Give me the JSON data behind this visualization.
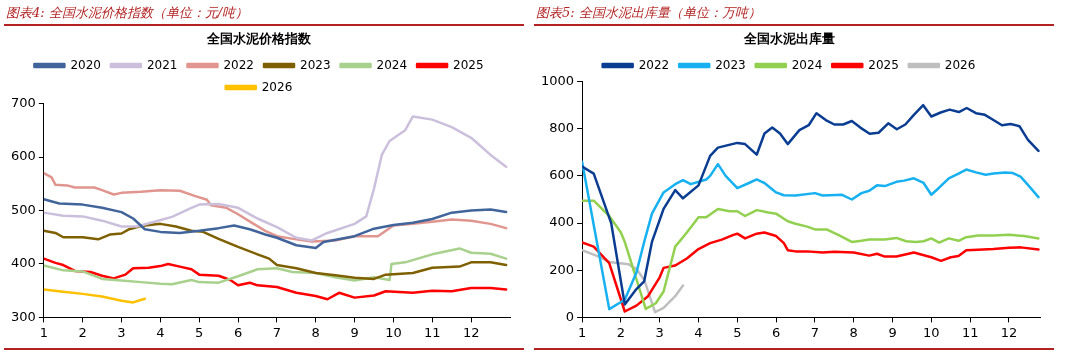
{
  "chart_data": [
    {
      "type": "line",
      "title": "图表4:  全国水泥价格指数（单位：元/吨）",
      "subtitle": "全国水泥价格指数",
      "xlim": [
        1,
        13
      ],
      "xticks": [
        1,
        2,
        3,
        4,
        5,
        6,
        7,
        8,
        9,
        10,
        11,
        12
      ],
      "ylim": [
        300,
        700
      ],
      "yticks": [
        300,
        400,
        500,
        600,
        700
      ],
      "grid": false,
      "legend": "top",
      "marker": "none",
      "line_style": "solid",
      "series": [
        {
          "name": "2020",
          "color": "#41659a",
          "x": [
            1,
            1.4,
            2,
            2.5,
            3,
            3.3,
            3.6,
            4,
            4.5,
            5,
            5.5,
            5.9,
            6.3,
            6.7,
            7,
            7.5,
            8,
            8.2,
            9,
            9.5,
            10,
            10.5,
            11,
            11.5,
            12,
            12.5,
            12.9
          ],
          "values": [
            521,
            513,
            511,
            505,
            497,
            485,
            465,
            460,
            458,
            462,
            467,
            472,
            465,
            455,
            449,
            435,
            430,
            441,
            452,
            466,
            473,
            477,
            484,
            496,
            500,
            502,
            497
          ]
        },
        {
          "name": "2021",
          "color": "#cbbfdc",
          "x": [
            1,
            1.5,
            2,
            2.5,
            3,
            3.4,
            3.8,
            4.3,
            4.8,
            5,
            5.5,
            6,
            6.5,
            7,
            7.5,
            7.9,
            8.3,
            9,
            9.3,
            9.5,
            9.7,
            9.9,
            10.3,
            10.5,
            11,
            11.5,
            12,
            12.5,
            12.9
          ],
          "values": [
            496,
            490,
            489,
            481,
            470,
            470,
            478,
            488,
            505,
            511,
            512,
            505,
            485,
            469,
            449,
            444,
            458,
            475,
            489,
            541,
            604,
            630,
            650,
            676,
            670,
            656,
            636,
            604,
            582
          ]
        },
        {
          "name": "2022",
          "color": "#e0958f",
          "x": [
            1,
            1.2,
            1.3,
            1.6,
            1.8,
            2.3,
            2.5,
            2.8,
            3,
            3.5,
            4,
            4.5,
            4.9,
            5.2,
            5.3,
            5.7,
            6,
            6.4,
            6.7,
            7,
            7.5,
            7.9,
            8.5,
            9,
            9.6,
            10,
            10.5,
            11,
            11.5,
            12,
            12.5,
            12.9
          ],
          "values": [
            570,
            562,
            548,
            547,
            543,
            543,
            538,
            530,
            533,
            535,
            538,
            537,
            527,
            520,
            510,
            505,
            493,
            475,
            462,
            452,
            446,
            442,
            444,
            452,
            452,
            472,
            475,
            479,
            483,
            481,
            475,
            467
          ]
        },
        {
          "name": "2023",
          "color": "#7f6000",
          "x": [
            1,
            1.3,
            1.5,
            2,
            2.4,
            2.7,
            3,
            3.2,
            3.5,
            4,
            4.4,
            4.8,
            5.1,
            5.5,
            6,
            6.5,
            6.8,
            7,
            7.5,
            8,
            8.5,
            9,
            9.5,
            9.8,
            10.5,
            11,
            11.7,
            12,
            12.5,
            12.9
          ],
          "values": [
            462,
            458,
            450,
            450,
            446,
            455,
            457,
            465,
            471,
            475,
            470,
            462,
            460,
            447,
            432,
            418,
            410,
            398,
            392,
            383,
            379,
            374,
            372,
            380,
            383,
            393,
            395,
            403,
            403,
            398
          ]
        },
        {
          "name": "2024",
          "color": "#a9d18e",
          "x": [
            1,
            1.5,
            2,
            2.5,
            3,
            3.5,
            4,
            4.3,
            4.8,
            5,
            5.5,
            6,
            6.5,
            7,
            7.4,
            8,
            8.5,
            9,
            9.5,
            9.9,
            9.95,
            10.3,
            11,
            11.7,
            12,
            12.5,
            12.9
          ],
          "values": [
            397,
            388,
            386,
            372,
            369,
            366,
            363,
            362,
            370,
            366,
            365,
            377,
            390,
            392,
            385,
            383,
            375,
            369,
            375,
            370,
            400,
            403,
            418,
            429,
            421,
            419,
            410
          ]
        },
        {
          "name": "2025",
          "color": "#ff0000",
          "x": [
            1,
            1.3,
            1.5,
            1.8,
            2.2,
            2.5,
            2.8,
            3.1,
            3.3,
            3.7,
            4,
            4.2,
            4.5,
            4.8,
            5,
            5.5,
            5.8,
            6,
            6.3,
            6.5,
            7,
            7.5,
            8,
            8.3,
            8.6,
            9,
            9.5,
            9.8,
            10.5,
            11,
            11.5,
            12,
            12.5,
            12.9
          ],
          "values": [
            410,
            402,
            398,
            387,
            385,
            378,
            373,
            380,
            392,
            393,
            396,
            400,
            395,
            390,
            380,
            378,
            370,
            360,
            365,
            360,
            357,
            346,
            340,
            334,
            346,
            337,
            341,
            349,
            346,
            350,
            349,
            355,
            355,
            352
          ]
        },
        {
          "name": "2026",
          "color": "#ffc000",
          "x": [
            1,
            1.5,
            2,
            2.5,
            3,
            3.3,
            3.6
          ],
          "values": [
            352,
            348,
            344,
            339,
            331,
            328,
            335
          ]
        }
      ]
    },
    {
      "type": "line",
      "title": "图表5:  全国水泥出库量（单位：万吨）",
      "subtitle": "全国水泥出库量",
      "xlim": [
        1,
        12.8
      ],
      "xticks": [
        1,
        2,
        3,
        4,
        5,
        6,
        7,
        8,
        9,
        10,
        11,
        12
      ],
      "ylim": [
        0,
        1000
      ],
      "yticks": [
        0,
        200,
        400,
        600,
        800,
        1000
      ],
      "grid": false,
      "legend": "top",
      "marker": "none",
      "line_style": "solid",
      "series": [
        {
          "name": "2022",
          "color": "#0a3d91",
          "x": [
            1,
            1.3,
            1.75,
            2.1,
            2.4,
            2.6,
            2.8,
            3.1,
            3.4,
            3.6,
            4,
            4.3,
            4.5,
            5,
            5.2,
            5.5,
            5.7,
            5.9,
            6.1,
            6.3,
            6.6,
            6.84,
            7.04,
            7.28,
            7.5,
            7.73,
            7.95,
            8.17,
            8.41,
            8.64,
            8.89,
            9.11,
            9.33,
            9.55,
            9.79,
            10,
            10.24,
            10.47,
            10.71,
            10.91,
            11.15,
            11.38,
            11.6,
            11.82,
            12.04,
            12.27,
            12.49,
            12.76
          ],
          "values": [
            640,
            610,
            400,
            55,
            120,
            153,
            320,
            460,
            540,
            505,
            560,
            685,
            720,
            740,
            735,
            690,
            780,
            805,
            780,
            735,
            794,
            815,
            866,
            837,
            818,
            818,
            833,
            805,
            779,
            783,
            823,
            798,
            818,
            859,
            900,
            852,
            869,
            881,
            871,
            888,
            866,
            859,
            837,
            815,
            820,
            811,
            753,
            706
          ]
        },
        {
          "name": "2023",
          "color": "#17b0f0",
          "x": [
            1,
            1.7,
            2.1,
            2.4,
            2.6,
            2.8,
            3.1,
            3.4,
            3.6,
            3.8,
            4.2,
            4.3,
            4.5,
            4.7,
            5,
            5.3,
            5.5,
            5.7,
            6,
            6.2,
            6.5,
            7,
            7.2,
            7.7,
            7.95,
            8.2,
            8.4,
            8.6,
            8.8,
            9.1,
            9.3,
            9.55,
            9.8,
            10,
            10.2,
            10.45,
            10.7,
            10.9,
            11.15,
            11.4,
            11.6,
            11.9,
            12.1,
            12.3,
            12.5,
            12.76
          ],
          "values": [
            660,
            35,
            75,
            190,
            320,
            440,
            530,
            565,
            582,
            565,
            585,
            600,
            650,
            600,
            548,
            570,
            585,
            570,
            530,
            518,
            517,
            527,
            517,
            520,
            500,
            527,
            537,
            560,
            557,
            575,
            580,
            590,
            570,
            520,
            550,
            590,
            610,
            627,
            615,
            605,
            610,
            615,
            612,
            597,
            560,
            510
          ]
        },
        {
          "name": "2024",
          "color": "#92d050",
          "x": [
            1,
            1.3,
            1.7,
            2,
            2.1,
            2.64,
            2.9,
            3.1,
            3.4,
            3.7,
            4,
            4.2,
            4.5,
            4.8,
            5,
            5.2,
            5.5,
            5.8,
            6,
            6.3,
            6.5,
            6.8,
            7,
            7.3,
            7.6,
            7.95,
            8.2,
            8.4,
            8.8,
            9.1,
            9.35,
            9.6,
            9.8,
            10,
            10.2,
            10.45,
            10.7,
            10.9,
            11.2,
            11.6,
            12,
            12.4,
            12.76
          ],
          "values": [
            495,
            495,
            430,
            360,
            320,
            36,
            60,
            110,
            300,
            360,
            425,
            425,
            460,
            450,
            450,
            430,
            455,
            445,
            440,
            408,
            397,
            385,
            373,
            373,
            350,
            320,
            325,
            330,
            330,
            337,
            323,
            320,
            323,
            335,
            317,
            335,
            325,
            340,
            347,
            347,
            350,
            345,
            335
          ]
        },
        {
          "name": "2025",
          "color": "#ff0000",
          "x": [
            1,
            1.3,
            1.7,
            2.1,
            2.4,
            2.7,
            3,
            3.1,
            3.4,
            3.7,
            4,
            4.3,
            4.6,
            4.9,
            5,
            5.2,
            5.5,
            5.7,
            6,
            6.2,
            6.3,
            6.5,
            6.8,
            7.2,
            7.5,
            8,
            8.4,
            8.6,
            8.8,
            9.1,
            9.55,
            10,
            10.25,
            10.5,
            10.7,
            10.9,
            11.2,
            11.6,
            12,
            12.3,
            12.76
          ],
          "values": [
            318,
            300,
            230,
            25,
            50,
            90,
            170,
            210,
            220,
            250,
            290,
            315,
            330,
            350,
            355,
            335,
            355,
            360,
            345,
            315,
            285,
            280,
            280,
            275,
            278,
            275,
            262,
            270,
            258,
            258,
            275,
            255,
            240,
            255,
            260,
            285,
            287,
            290,
            295,
            297,
            288
          ]
        },
        {
          "name": "2026",
          "color": "#bfbfbf",
          "x": [
            1,
            1.4,
            1.7,
            2.2,
            2.4,
            2.6,
            2.88,
            3.1,
            3.4,
            3.6
          ],
          "values": [
            285,
            260,
            235,
            225,
            205,
            160,
            22,
            40,
            90,
            135
          ]
        }
      ]
    }
  ]
}
